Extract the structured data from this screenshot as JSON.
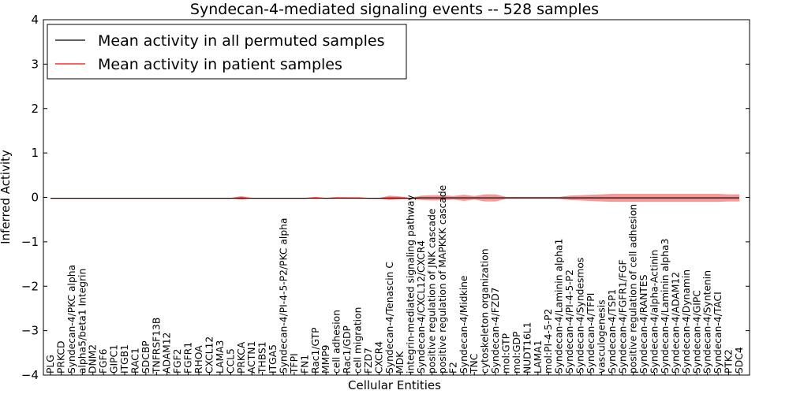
{
  "chart_data": {
    "type": "line",
    "title": "Syndecan-4-mediated signaling events -- 528 samples",
    "xlabel": "Cellular Entities",
    "ylabel": "Inferred Activity",
    "ylim": [
      -4,
      4
    ],
    "yticks": [
      -4,
      -3,
      -2,
      -1,
      0,
      1,
      2,
      3,
      4
    ],
    "ytick_labels": [
      "−4",
      "−3",
      "−2",
      "−1",
      "0",
      "1",
      "2",
      "3",
      "4"
    ],
    "grid": false,
    "legend_position": "top-left",
    "categories": [
      "PLG",
      "PRKCD",
      "Syndecan-4/PKC alpha",
      "alpha5/beta1 Integrin",
      "DNM2",
      "FGF6",
      "GIPC1",
      "ITGB1",
      "RAC1",
      "SDCBP",
      "TNFRSF13B",
      "ADAM12",
      "FGF2",
      "FGFR1",
      "RHOA",
      "CXCL12",
      "LAMA3",
      "CCL5",
      "PRKCA",
      "ACTN1",
      "THBS1",
      "ITGA5",
      "Syndecan-4/PI-4-5-P2/PKC alpha",
      "TFPI",
      "FN1",
      "Rac1/GTP",
      "MMP9",
      "cell adhesion",
      "Rac1/GDP",
      "cell migration",
      "FZD7",
      "CXCR4",
      "Syndecan-4/Tenascin C",
      "MDK",
      "integrin-mediated signaling pathway",
      "Syndecan-4/CXCL12/CXCR4",
      "positive regulation of JNK cascade",
      "positive regulation of MAPKKK cascade",
      "F2",
      "Syndecan-4/Midkine",
      "TNC",
      "cytoskeleton organization",
      "Syndecan-4/FZD7",
      "mol:GTP",
      "mol:GDP",
      "NUDT16L1",
      "LAMA1",
      "mol:PI-4-5-P2",
      "Syndecan-4/Laminin alpha1",
      "Syndecan-4/PI-4-5-P2",
      "Syndecan-4/Syndesmos",
      "Syndecan-4/TFPI",
      "vasculogenesis",
      "Syndecan-4/TSP1",
      "Syndecan-4/FGFR1/FGF",
      "positive regulation of cell adhesion",
      "Syndecan-4/RANTES",
      "Syndecan-4/alpha-Actinin",
      "Syndecan-4/Laminin alpha3",
      "Syndecan-4/ADAM12",
      "Syndecan-4/Dynamin",
      "Syndecan-4/GIPC",
      "Syndecan-4/Syntenin",
      "Syndecan-4/TACI",
      "PTK2",
      "SDC4"
    ],
    "series": [
      {
        "name": "Mean activity in all permuted samples",
        "color": "#000000",
        "values": [
          -0.02,
          -0.02,
          -0.02,
          -0.02,
          -0.02,
          -0.02,
          -0.02,
          -0.02,
          -0.02,
          -0.02,
          -0.02,
          -0.02,
          -0.02,
          -0.02,
          -0.02,
          -0.02,
          -0.02,
          -0.02,
          -0.02,
          -0.02,
          -0.02,
          -0.02,
          -0.02,
          -0.02,
          -0.02,
          -0.02,
          -0.02,
          -0.02,
          -0.02,
          -0.02,
          -0.02,
          -0.02,
          -0.02,
          -0.02,
          -0.02,
          -0.01,
          -0.01,
          -0.01,
          -0.01,
          -0.01,
          -0.01,
          -0.01,
          -0.01,
          -0.01,
          -0.01,
          -0.01,
          -0.01,
          -0.01,
          -0.01,
          -0.01,
          -0.01,
          -0.01,
          -0.01,
          -0.01,
          -0.01,
          -0.01,
          -0.01,
          -0.01,
          -0.01,
          -0.01,
          -0.01,
          -0.01,
          -0.01,
          -0.01,
          -0.01,
          -0.01
        ]
      },
      {
        "name": "Mean activity in patient samples",
        "color": "#ff0000",
        "values": [
          -0.02,
          -0.02,
          -0.02,
          -0.02,
          -0.02,
          -0.02,
          -0.02,
          -0.02,
          -0.02,
          -0.02,
          -0.02,
          -0.02,
          -0.02,
          -0.02,
          -0.02,
          -0.02,
          -0.02,
          -0.02,
          -0.01,
          -0.02,
          -0.02,
          -0.02,
          -0.02,
          -0.02,
          -0.02,
          -0.01,
          -0.02,
          -0.01,
          -0.01,
          -0.01,
          -0.02,
          -0.02,
          -0.01,
          -0.01,
          -0.02,
          -0.01,
          -0.01,
          -0.01,
          -0.01,
          -0.01,
          -0.01,
          -0.01,
          -0.01,
          -0.01,
          -0.01,
          -0.01,
          -0.01,
          -0.01,
          -0.01,
          -0.01,
          -0.01,
          -0.01,
          -0.01,
          -0.01,
          -0.01,
          -0.01,
          -0.01,
          -0.01,
          -0.01,
          -0.01,
          -0.01,
          -0.01,
          -0.01,
          -0.01,
          -0.01,
          -0.01
        ]
      }
    ],
    "patient_band_halfwidth": [
      0.005,
      0.005,
      0.005,
      0.005,
      0.005,
      0.005,
      0.005,
      0.005,
      0.005,
      0.005,
      0.005,
      0.005,
      0.005,
      0.005,
      0.005,
      0.005,
      0.005,
      0.005,
      0.04,
      0.005,
      0.005,
      0.005,
      0.005,
      0.005,
      0.005,
      0.02,
      0.005,
      0.015,
      0.01,
      0.01,
      0.005,
      0.01,
      0.05,
      0.03,
      0.01,
      0.05,
      0.06,
      0.06,
      0.04,
      0.07,
      0.04,
      0.08,
      0.08,
      0.02,
      0.02,
      0.02,
      0.02,
      0.02,
      0.02,
      0.05,
      0.06,
      0.07,
      0.08,
      0.09,
      0.09,
      0.09,
      0.09,
      0.09,
      0.09,
      0.09,
      0.09,
      0.09,
      0.09,
      0.09,
      0.08,
      0.08
    ],
    "permuted_band_halfwidth": [
      0.005,
      0.005,
      0.005,
      0.005,
      0.005,
      0.005,
      0.005,
      0.005,
      0.005,
      0.005,
      0.005,
      0.005,
      0.005,
      0.005,
      0.005,
      0.005,
      0.005,
      0.005,
      0.025,
      0.005,
      0.005,
      0.005,
      0.005,
      0.005,
      0.005,
      0.005,
      0.005,
      0.005,
      0.005,
      0.005,
      0.005,
      0.005,
      0.005,
      0.005,
      0.005,
      0.005,
      0.005,
      0.005,
      0.005,
      0.005,
      0.005,
      0.005,
      0.005,
      0.005,
      0.005,
      0.005,
      0.005,
      0.005,
      0.005,
      0.005,
      0.005,
      0.005,
      0.005,
      0.005,
      0.005,
      0.005,
      0.005,
      0.005,
      0.005,
      0.005,
      0.005,
      0.005,
      0.005,
      0.005,
      0.005,
      0.005
    ]
  }
}
